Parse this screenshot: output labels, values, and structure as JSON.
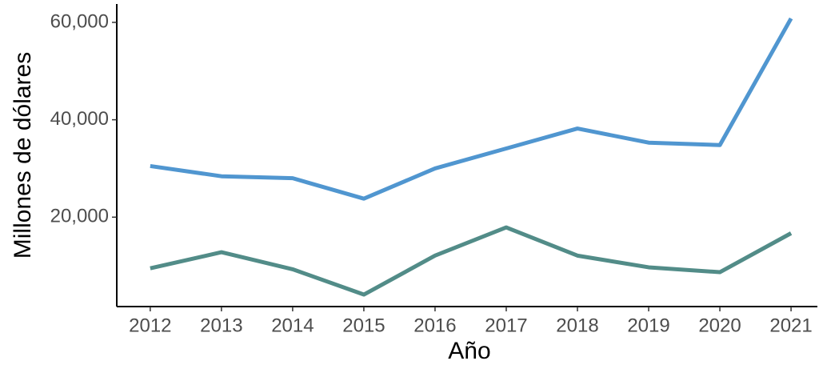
{
  "chart_data": {
    "type": "line",
    "x_label": "Año",
    "y_label": "Millones de dólares",
    "x": [
      2012,
      2013,
      2014,
      2015,
      2016,
      2017,
      2018,
      2019,
      2020,
      2021
    ],
    "series": [
      {
        "color": "#5096d0",
        "values": [
          30500,
          28400,
          28000,
          23800,
          30000,
          34100,
          38200,
          35300,
          34800,
          60800
        ]
      },
      {
        "color": "#528c88",
        "values": [
          9500,
          12800,
          9300,
          4100,
          12100,
          17900,
          12100,
          9700,
          8700,
          16700
        ]
      }
    ],
    "xlim": [
      2011.53,
      2021.37
    ],
    "ylim": [
      1640,
      63770
    ],
    "xticks": [
      2012,
      2013,
      2014,
      2015,
      2016,
      2017,
      2018,
      2019,
      2020,
      2021
    ],
    "yticks": [
      {
        "value": 20000,
        "label": "20,000"
      },
      {
        "value": 40000,
        "label": "40,000"
      },
      {
        "value": 60000,
        "label": "60,000"
      }
    ],
    "grid": false
  }
}
